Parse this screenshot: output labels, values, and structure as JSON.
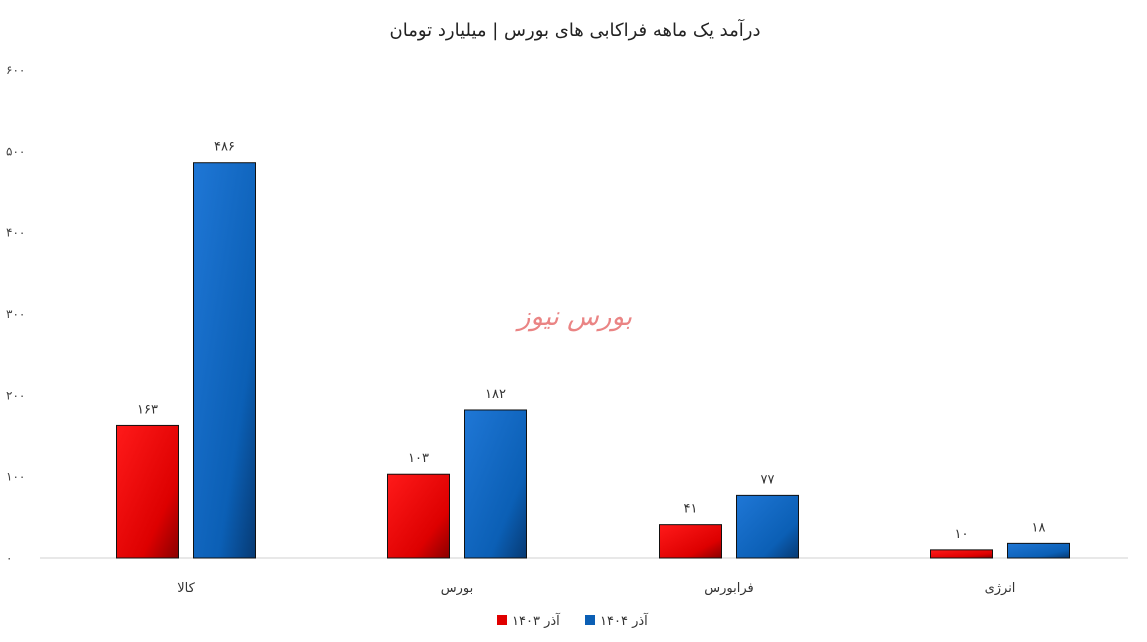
{
  "chart_data": {
    "type": "bar",
    "title": "درآمد یک ماهه فراکابی های بورس | میلیارد تومان",
    "categories": [
      "کالا",
      "بورس",
      "فرابورس",
      "انرژی"
    ],
    "series": [
      {
        "name": "آذر ۱۴۰۳",
        "color": "#e00000",
        "values": [
          163,
          103,
          41,
          10
        ],
        "labels": [
          "۱۶۳",
          "۱۰۳",
          "۴۱",
          "۱۰"
        ]
      },
      {
        "name": "آذر ۱۴۰۴",
        "color": "#0b5fb5",
        "values": [
          486,
          182,
          77,
          18
        ],
        "labels": [
          "۴۸۶",
          "۱۸۲",
          "۷۷",
          "۱۸"
        ]
      }
    ],
    "ylim": [
      0,
      600
    ],
    "yticks": [
      0,
      100,
      200,
      300,
      400,
      500,
      600
    ],
    "ytick_labels": [
      "۰",
      "۱۰۰",
      "۲۰۰",
      "۳۰۰",
      "۴۰۰",
      "۵۰۰",
      "۶۰۰"
    ],
    "legend_position": "bottom-center",
    "watermark": "بورس نیوز",
    "grid": false
  }
}
